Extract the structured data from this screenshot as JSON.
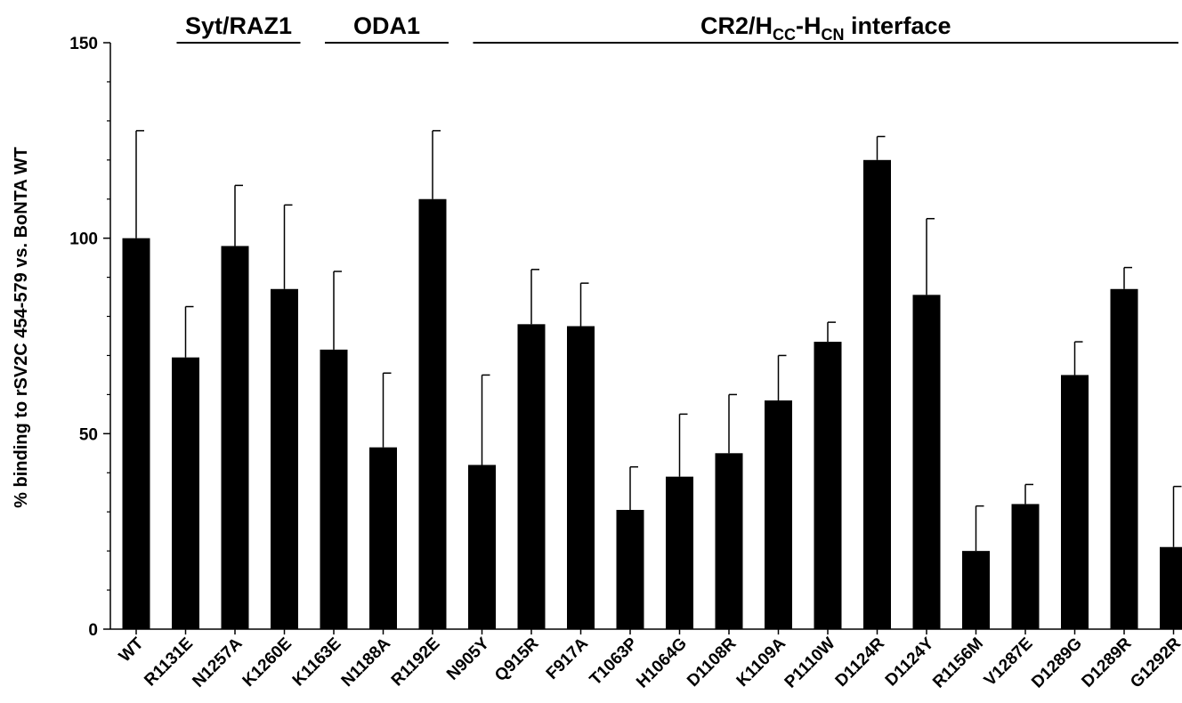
{
  "chart_data": {
    "type": "bar",
    "ylabel": "% binding to rSV2C 454-579 vs. BoNTA WT",
    "ylim": [
      0,
      150
    ],
    "yticks": [
      0,
      50,
      100,
      150
    ],
    "categories": [
      "WT",
      "R1131E",
      "N1257A",
      "K1260E",
      "K1163E",
      "N1188A",
      "R1192E",
      "N905Y",
      "Q915R",
      "F917A",
      "T1063P",
      "H1064G",
      "D1108R",
      "K1109A",
      "P1110W",
      "D1124R",
      "D1124Y",
      "R1156M",
      "V1287E",
      "D1289G",
      "D1289R",
      "G1292R"
    ],
    "values": [
      100,
      69.5,
      98,
      87,
      71.5,
      46.5,
      110,
      42,
      78,
      77.5,
      30.5,
      39,
      45,
      58.5,
      73.5,
      120,
      85.5,
      20,
      32,
      65,
      87,
      21
    ],
    "error_upper": [
      127.5,
      82.5,
      113.5,
      108.5,
      91.5,
      65.5,
      127.5,
      65,
      92,
      88.5,
      41.5,
      55,
      60,
      70,
      78.5,
      126,
      105,
      31.5,
      37,
      73.5,
      92.5,
      36.5
    ],
    "color": "#000000",
    "groups": [
      {
        "label": "Syt/RAZ1",
        "start": 1,
        "end": 3
      },
      {
        "label": "ODA1",
        "start": 4,
        "end": 6
      },
      {
        "label_main": "CR2/H",
        "sub1": "CC",
        "label_dash": "-H",
        "sub2": "CN",
        "label_tail": " interface",
        "start": 7,
        "end": 21
      }
    ]
  }
}
